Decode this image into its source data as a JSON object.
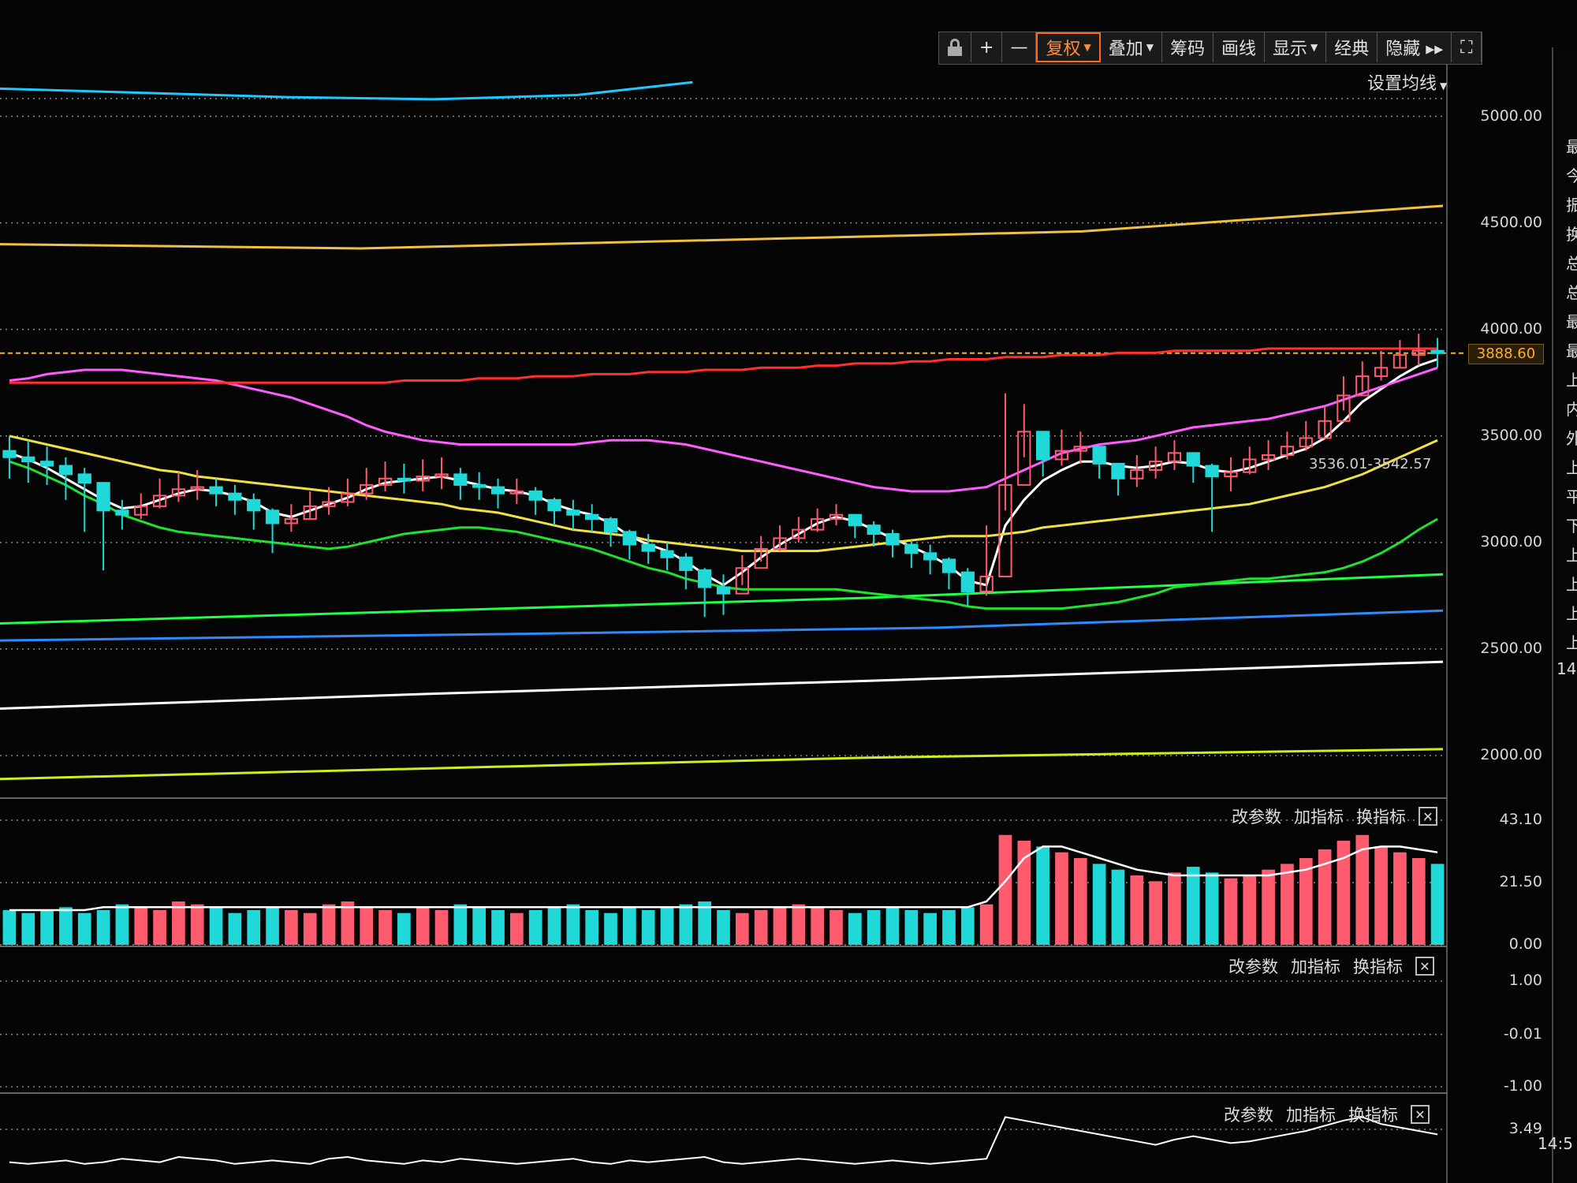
{
  "toolbar": {
    "buttons": [
      {
        "key": "lock",
        "icon": "lock-icon"
      },
      {
        "key": "zoom_in",
        "label": "+"
      },
      {
        "key": "zoom_out",
        "label": "—"
      },
      {
        "key": "adjust",
        "label": "复权",
        "active": true,
        "dropdown": true
      },
      {
        "key": "overlay",
        "label": "叠加",
        "dropdown": true
      },
      {
        "key": "chips",
        "label": "筹码"
      },
      {
        "key": "draw",
        "label": "画线"
      },
      {
        "key": "display",
        "label": "显示",
        "dropdown": true
      },
      {
        "key": "classic",
        "label": "经典"
      },
      {
        "key": "hide",
        "label": "隐藏 ▸▸"
      },
      {
        "key": "fullscreen",
        "icon": "fullscreen-icon"
      }
    ]
  },
  "ma_setting": "设置均线",
  "indicator_controls": {
    "modify": "改参数",
    "add": "加指标",
    "switch": "换指标"
  },
  "main_axis": [
    "5000.00",
    "4500.00",
    "4000.00",
    "3500.00",
    "3000.00",
    "2500.00",
    "2000.00"
  ],
  "current_price": "3888.60",
  "bollinger_label": "3536.01-3542.57",
  "volume_axis": [
    "43.10",
    "21.50",
    "0.00"
  ],
  "osc_axis": [
    "1.00",
    "-0.01",
    "-1.00"
  ],
  "bottom_axis": [
    "3.49"
  ],
  "right_panel": {
    "chars": [
      "最",
      "今",
      "振",
      "换",
      "总",
      "总",
      "最",
      "最",
      "上",
      "内",
      "外",
      "上",
      "平",
      "下",
      "上",
      "上",
      "上",
      "上"
    ],
    "number": "14",
    "time": "14:5"
  },
  "colors": {
    "up": "#ff5b6e",
    "down": "#20d8d8",
    "ma_white": "#ffffff",
    "ma_yellow": "#f0e040",
    "ma_magenta": "#ff5cff",
    "ma_green": "#20e030",
    "ma_red": "#ff3030",
    "ma_blue": "#2b8cff"
  },
  "chart_data": {
    "type": "candlestick",
    "ylim": [
      1800,
      5250
    ],
    "volume_ylim": [
      0,
      43.1
    ],
    "osc_ylim": [
      -1.0,
      1.0
    ],
    "candles": {
      "note_points": [],
      "close_path": [
        3400,
        3380,
        3360,
        3320,
        3280,
        3150,
        3130,
        3170,
        3220,
        3250,
        3260,
        3230,
        3200,
        3150,
        3090,
        3110,
        3170,
        3190,
        3230,
        3270,
        3300,
        3290,
        3310,
        3320,
        3270,
        3260,
        3230,
        3240,
        3200,
        3150,
        3130,
        3110,
        3050,
        2990,
        2960,
        2930,
        2870,
        2790,
        2760,
        2880,
        2970,
        3020,
        3060,
        3110,
        3130,
        3080,
        3040,
        2990,
        2950,
        2920,
        2860,
        2770,
        2840,
        3270,
        3520,
        3390,
        3430,
        3450,
        3370,
        3300,
        3340,
        3380,
        3420,
        3360,
        3310,
        3330,
        3390,
        3410,
        3450,
        3490,
        3570,
        3690,
        3780,
        3820,
        3880,
        3900,
        3888.6
      ],
      "high_path": [
        3500,
        3480,
        3450,
        3400,
        3350,
        3240,
        3200,
        3230,
        3300,
        3330,
        3340,
        3300,
        3270,
        3230,
        3160,
        3180,
        3240,
        3260,
        3300,
        3350,
        3380,
        3370,
        3390,
        3400,
        3350,
        3330,
        3300,
        3300,
        3260,
        3210,
        3200,
        3180,
        3120,
        3060,
        3040,
        3000,
        2950,
        2880,
        2850,
        2940,
        3030,
        3080,
        3120,
        3160,
        3180,
        3130,
        3100,
        3060,
        3010,
        2990,
        2930,
        2880,
        3080,
        3700,
        3650,
        3480,
        3530,
        3520,
        3440,
        3370,
        3410,
        3450,
        3480,
        3420,
        3370,
        3400,
        3450,
        3480,
        3520,
        3570,
        3640,
        3780,
        3850,
        3900,
        3950,
        3980,
        3960
      ],
      "low_path": [
        3300,
        3280,
        3270,
        3200,
        3050,
        2870,
        3060,
        3110,
        3160,
        3190,
        3200,
        3170,
        3130,
        3060,
        2950,
        3050,
        3110,
        3130,
        3170,
        3200,
        3240,
        3230,
        3240,
        3250,
        3200,
        3200,
        3160,
        3180,
        3130,
        3080,
        3060,
        3050,
        2980,
        2920,
        2900,
        2870,
        2780,
        2650,
        2660,
        2800,
        2910,
        2960,
        3000,
        3050,
        3080,
        3020,
        2980,
        2930,
        2880,
        2850,
        2780,
        2700,
        2750,
        3150,
        3400,
        3310,
        3360,
        3370,
        3300,
        3220,
        3260,
        3300,
        3340,
        3280,
        3050,
        3240,
        3320,
        3340,
        3390,
        3430,
        3500,
        3620,
        3710,
        3760,
        3820,
        3830,
        3820
      ]
    },
    "moving_averages": [
      {
        "color": "#ffffff",
        "values": [
          3420,
          3390,
          3350,
          3300,
          3250,
          3200,
          3160,
          3170,
          3200,
          3230,
          3250,
          3240,
          3220,
          3190,
          3140,
          3120,
          3150,
          3180,
          3210,
          3250,
          3280,
          3290,
          3300,
          3310,
          3290,
          3270,
          3250,
          3240,
          3220,
          3180,
          3150,
          3130,
          3090,
          3030,
          2990,
          2960,
          2910,
          2850,
          2800,
          2860,
          2930,
          2990,
          3040,
          3090,
          3120,
          3100,
          3060,
          3020,
          2980,
          2940,
          2890,
          2820,
          2800,
          3080,
          3200,
          3290,
          3340,
          3380,
          3380,
          3360,
          3350,
          3360,
          3380,
          3370,
          3340,
          3330,
          3350,
          3380,
          3410,
          3440,
          3490,
          3570,
          3660,
          3720,
          3780,
          3830,
          3860
        ]
      },
      {
        "color": "#f0e040",
        "values": [
          3500,
          3480,
          3460,
          3440,
          3420,
          3400,
          3380,
          3360,
          3340,
          3330,
          3310,
          3300,
          3290,
          3280,
          3270,
          3260,
          3250,
          3240,
          3230,
          3220,
          3210,
          3200,
          3190,
          3180,
          3160,
          3150,
          3140,
          3120,
          3100,
          3080,
          3060,
          3050,
          3040,
          3030,
          3010,
          3000,
          2990,
          2980,
          2970,
          2960,
          2960,
          2960,
          2960,
          2960,
          2970,
          2980,
          2990,
          3000,
          3010,
          3020,
          3030,
          3030,
          3030,
          3040,
          3050,
          3070,
          3080,
          3090,
          3100,
          3110,
          3120,
          3130,
          3140,
          3150,
          3160,
          3170,
          3180,
          3200,
          3220,
          3240,
          3260,
          3290,
          3320,
          3360,
          3400,
          3440,
          3480
        ]
      },
      {
        "color": "#ff5cff",
        "values": [
          3760,
          3770,
          3790,
          3800,
          3810,
          3810,
          3810,
          3800,
          3790,
          3780,
          3770,
          3760,
          3740,
          3720,
          3700,
          3680,
          3650,
          3620,
          3590,
          3550,
          3520,
          3500,
          3480,
          3470,
          3460,
          3460,
          3460,
          3460,
          3460,
          3460,
          3460,
          3470,
          3480,
          3480,
          3480,
          3470,
          3460,
          3440,
          3420,
          3400,
          3380,
          3360,
          3340,
          3320,
          3300,
          3280,
          3260,
          3250,
          3240,
          3240,
          3240,
          3250,
          3260,
          3300,
          3340,
          3380,
          3420,
          3440,
          3460,
          3470,
          3480,
          3500,
          3520,
          3540,
          3550,
          3560,
          3570,
          3580,
          3600,
          3620,
          3640,
          3670,
          3700,
          3730,
          3760,
          3790,
          3820
        ]
      },
      {
        "color": "#20e030",
        "values": [
          3380,
          3350,
          3310,
          3270,
          3220,
          3180,
          3130,
          3100,
          3070,
          3050,
          3040,
          3030,
          3020,
          3010,
          3000,
          2990,
          2980,
          2970,
          2980,
          3000,
          3020,
          3040,
          3050,
          3060,
          3070,
          3070,
          3060,
          3050,
          3030,
          3010,
          2990,
          2970,
          2940,
          2910,
          2880,
          2860,
          2830,
          2810,
          2790,
          2780,
          2780,
          2780,
          2780,
          2780,
          2780,
          2770,
          2760,
          2750,
          2740,
          2730,
          2720,
          2700,
          2690,
          2690,
          2690,
          2690,
          2690,
          2700,
          2710,
          2720,
          2740,
          2760,
          2790,
          2800,
          2810,
          2820,
          2830,
          2830,
          2840,
          2850,
          2860,
          2880,
          2910,
          2950,
          3000,
          3060,
          3110
        ]
      },
      {
        "color": "#ff3030",
        "values": [
          3750,
          3750,
          3750,
          3750,
          3750,
          3750,
          3750,
          3750,
          3750,
          3750,
          3750,
          3750,
          3750,
          3750,
          3750,
          3750,
          3750,
          3750,
          3750,
          3750,
          3750,
          3760,
          3760,
          3760,
          3760,
          3770,
          3770,
          3770,
          3780,
          3780,
          3780,
          3790,
          3790,
          3790,
          3800,
          3800,
          3800,
          3810,
          3810,
          3810,
          3820,
          3820,
          3820,
          3830,
          3830,
          3840,
          3840,
          3840,
          3850,
          3850,
          3860,
          3860,
          3860,
          3870,
          3870,
          3870,
          3880,
          3880,
          3880,
          3890,
          3890,
          3890,
          3900,
          3900,
          3900,
          3900,
          3900,
          3910,
          3910,
          3910,
          3910,
          3910,
          3910,
          3910,
          3910,
          3910,
          3910
        ]
      }
    ],
    "long_lines": [
      {
        "color": "#20c8ff",
        "points": [
          [
            0,
            5130
          ],
          [
            0.2,
            5090
          ],
          [
            0.3,
            5080
          ],
          [
            0.4,
            5100
          ],
          [
            0.48,
            5160
          ]
        ]
      },
      {
        "color": "#f0c040",
        "points": [
          [
            0,
            4400
          ],
          [
            0.25,
            4380
          ],
          [
            0.5,
            4420
          ],
          [
            0.75,
            4460
          ],
          [
            1,
            4580
          ]
        ]
      },
      {
        "color": "#20ff40",
        "points": [
          [
            0,
            2620
          ],
          [
            0.3,
            2680
          ],
          [
            0.6,
            2740
          ],
          [
            1,
            2850
          ]
        ]
      },
      {
        "color": "#2b8cff",
        "points": [
          [
            0,
            2540
          ],
          [
            0.35,
            2570
          ],
          [
            0.65,
            2600
          ],
          [
            1,
            2680
          ]
        ]
      },
      {
        "color": "#ffffff",
        "points": [
          [
            0,
            2220
          ],
          [
            0.3,
            2290
          ],
          [
            0.6,
            2350
          ],
          [
            1,
            2440
          ]
        ]
      },
      {
        "color": "#c8f020",
        "points": [
          [
            0,
            1890
          ],
          [
            0.3,
            1940
          ],
          [
            0.6,
            1990
          ],
          [
            1,
            2030
          ]
        ]
      }
    ],
    "volume": [
      12,
      11,
      12,
      13,
      11,
      12,
      14,
      13,
      12,
      15,
      14,
      13,
      11,
      12,
      13,
      12,
      11,
      14,
      15,
      13,
      12,
      11,
      13,
      12,
      14,
      13,
      12,
      11,
      12,
      13,
      14,
      12,
      11,
      13,
      12,
      13,
      14,
      15,
      12,
      11,
      12,
      13,
      14,
      13,
      12,
      11,
      12,
      13,
      12,
      11,
      12,
      13,
      14,
      38,
      36,
      34,
      32,
      30,
      28,
      26,
      24,
      22,
      25,
      27,
      25,
      23,
      24,
      26,
      28,
      30,
      33,
      36,
      38,
      34,
      32,
      30,
      28
    ],
    "volume_ma": [
      12,
      12,
      12,
      12,
      12,
      13,
      13,
      13,
      13,
      13,
      13,
      13,
      13,
      13,
      13,
      13,
      13,
      13,
      13,
      13,
      13,
      13,
      13,
      13,
      13,
      13,
      13,
      13,
      13,
      13,
      13,
      13,
      13,
      13,
      13,
      13,
      13,
      13,
      13,
      13,
      13,
      13,
      13,
      13,
      13,
      13,
      13,
      13,
      13,
      13,
      13,
      13,
      15,
      22,
      30,
      34,
      34,
      32,
      30,
      28,
      26,
      25,
      24,
      24,
      24,
      24,
      24,
      24,
      25,
      26,
      28,
      30,
      33,
      34,
      34,
      33,
      32
    ]
  }
}
